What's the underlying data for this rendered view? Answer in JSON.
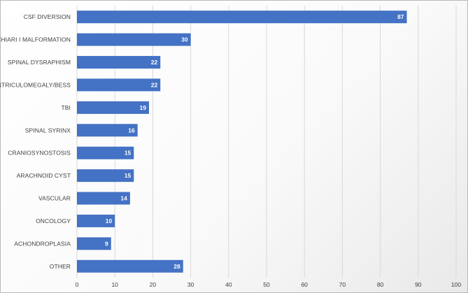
{
  "chart_data": {
    "type": "bar",
    "orientation": "horizontal",
    "categories": [
      "CSF DIVERSION",
      "CHIARI I MALFORMATION",
      "SPINAL DYSRAPHISM",
      "VENTRICULOMEGALY/BESS",
      "TBI",
      "SPINAL SYRINX",
      "CRANIOSYNOSTOSIS",
      "ARACHNOID CYST",
      "VASCULAR",
      "ONCOLOGY",
      "ACHONDROPLASIA",
      "OTHER"
    ],
    "values": [
      87,
      30,
      22,
      22,
      19,
      16,
      15,
      15,
      14,
      10,
      9,
      28
    ],
    "xlim": [
      0,
      100
    ],
    "xticks": [
      0,
      10,
      20,
      30,
      40,
      50,
      60,
      70,
      80,
      90,
      100
    ],
    "title": "",
    "xlabel": "",
    "ylabel": "",
    "grid": "vertical",
    "data_labels": true,
    "bar_color": "#4472C4",
    "grid_color": "#d9d9d9"
  }
}
